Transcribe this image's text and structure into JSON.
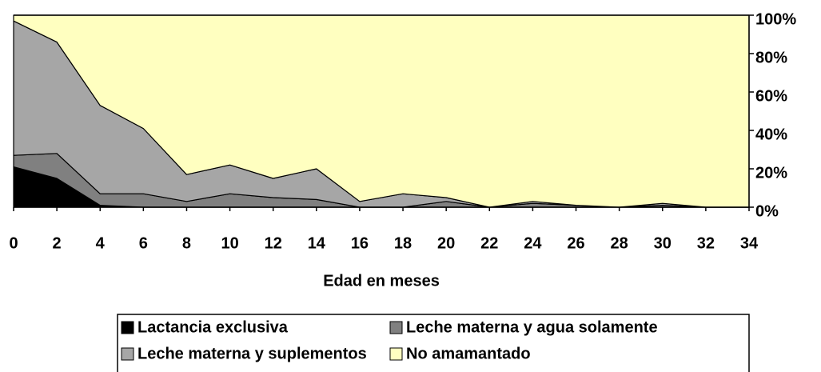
{
  "chart_data": {
    "type": "stacked_area",
    "x_label": "Edad en meses",
    "x": [
      0,
      2,
      4,
      6,
      8,
      10,
      12,
      14,
      16,
      18,
      20,
      22,
      24,
      26,
      28,
      30,
      32,
      34
    ],
    "xlim": [
      0,
      34
    ],
    "xticks": [
      0,
      2,
      4,
      6,
      8,
      10,
      12,
      14,
      16,
      18,
      20,
      22,
      24,
      26,
      28,
      30,
      32,
      34
    ],
    "ylim": [
      0,
      100
    ],
    "yticks": [
      {
        "value": 0,
        "label": "0%"
      },
      {
        "value": 20,
        "label": "20%"
      },
      {
        "value": 40,
        "label": "40%"
      },
      {
        "value": 60,
        "label": "60%"
      },
      {
        "value": 80,
        "label": "80%"
      },
      {
        "value": 100,
        "label": "100%"
      }
    ],
    "y_axis_side": "right",
    "legend": "bottom",
    "series": [
      {
        "name": "Lactancia exclusiva",
        "color": "#000000",
        "values": [
          21,
          15,
          1,
          0,
          0,
          0,
          0,
          0,
          0,
          0,
          0,
          0,
          0,
          0,
          0,
          0,
          0,
          0
        ]
      },
      {
        "name": "Leche materna y agua solamente",
        "color": "#808080",
        "values": [
          6,
          13,
          6,
          7,
          3,
          7,
          5,
          4,
          0,
          0,
          3,
          0,
          2,
          1,
          0,
          1,
          0,
          0
        ]
      },
      {
        "name": "Leche materna y suplementos",
        "color": "#a6a6a6",
        "values": [
          70,
          58,
          46,
          34,
          14,
          15,
          10,
          16,
          3,
          7,
          2,
          0,
          1,
          0,
          0,
          1,
          0,
          0
        ]
      },
      {
        "name": "No amamantado",
        "color": "#ffffc0",
        "values": [
          3,
          14,
          47,
          59,
          83,
          78,
          85,
          80,
          97,
          93,
          95,
          100,
          97,
          99,
          100,
          98,
          100,
          100
        ]
      }
    ]
  }
}
